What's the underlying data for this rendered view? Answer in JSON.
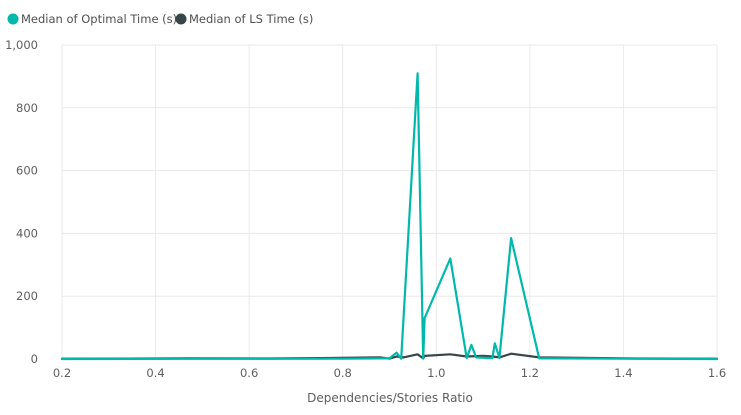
{
  "chart_data": {
    "type": "line",
    "xlabel": "Dependencies/Stories Ratio",
    "ylabel": "",
    "xlim": [
      0.2,
      1.6
    ],
    "ylim": [
      0,
      1000
    ],
    "x_ticks": [
      "0.2",
      "0.4",
      "0.6",
      "0.8",
      "1.0",
      "1.2",
      "1.4",
      "1.6"
    ],
    "y_ticks": [
      "0",
      "200",
      "400",
      "600",
      "800",
      "1,000"
    ],
    "x_tick_values": [
      0.2,
      0.4,
      0.6,
      0.8,
      1.0,
      1.2,
      1.4,
      1.6
    ],
    "y_tick_values": [
      0,
      200,
      400,
      600,
      800,
      1000
    ],
    "grid": true,
    "legend_position": "top-left",
    "series": [
      {
        "name": "Median of Optimal Time (s)",
        "color": "#01b8aa",
        "points": [
          [
            0.2,
            0
          ],
          [
            0.47,
            0.5
          ],
          [
            0.65,
            0.5
          ],
          [
            0.8,
            1
          ],
          [
            0.88,
            2
          ],
          [
            0.9,
            2
          ],
          [
            0.915,
            20
          ],
          [
            0.925,
            1
          ],
          [
            0.96,
            910
          ],
          [
            0.972,
            1
          ],
          [
            0.975,
            130
          ],
          [
            1.03,
            320
          ],
          [
            1.065,
            3
          ],
          [
            1.075,
            45
          ],
          [
            1.085,
            5
          ],
          [
            1.12,
            3
          ],
          [
            1.125,
            50
          ],
          [
            1.135,
            3
          ],
          [
            1.16,
            385
          ],
          [
            1.22,
            2
          ],
          [
            1.25,
            2
          ],
          [
            1.4,
            1
          ],
          [
            1.6,
            0
          ]
        ]
      },
      {
        "name": "Median of LS Time (s)",
        "color": "#374649",
        "points": [
          [
            0.2,
            1
          ],
          [
            0.47,
            2
          ],
          [
            0.65,
            1.5
          ],
          [
            0.75,
            3
          ],
          [
            0.88,
            5
          ],
          [
            0.9,
            1
          ],
          [
            0.915,
            8
          ],
          [
            0.93,
            5
          ],
          [
            0.96,
            15
          ],
          [
            0.972,
            2
          ],
          [
            0.975,
            10
          ],
          [
            1.03,
            15
          ],
          [
            1.065,
            8
          ],
          [
            1.1,
            10
          ],
          [
            1.12,
            8
          ],
          [
            1.135,
            5
          ],
          [
            1.16,
            17
          ],
          [
            1.22,
            5
          ],
          [
            1.4,
            2
          ],
          [
            1.6,
            1
          ]
        ]
      }
    ]
  }
}
